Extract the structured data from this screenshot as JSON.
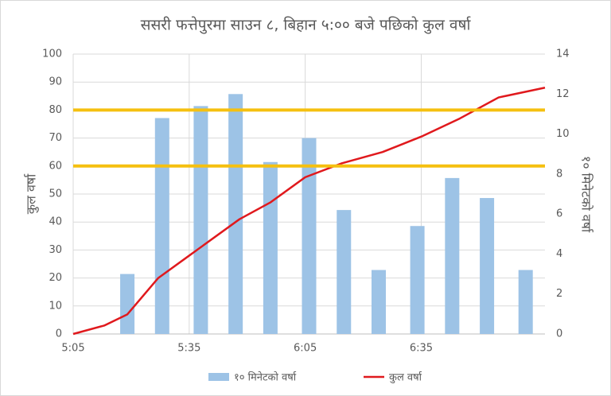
{
  "chart_data": {
    "type": "bar-line",
    "title": "ससरी फत्तेपुरमा साउन ८, बिहान ५:०० बजे पछिको कुल वर्षा",
    "ylabel": "कुल वर्षा",
    "y2label": "१० मिनेटको वर्षा",
    "xlim": [
      0,
      122
    ],
    "xticks": [
      {
        "value": 0,
        "label": "5:05"
      },
      {
        "value": 30,
        "label": "5:35"
      },
      {
        "value": 60,
        "label": "6:05"
      },
      {
        "value": 90,
        "label": "6:35"
      }
    ],
    "ylim": [
      0,
      100
    ],
    "yticks": [
      0,
      10,
      20,
      30,
      40,
      50,
      60,
      70,
      80,
      90,
      100
    ],
    "y2lim": [
      0,
      14
    ],
    "y2ticks": [
      0,
      2,
      4,
      6,
      8,
      10,
      12,
      14
    ],
    "grid": true,
    "legend": "bottom",
    "hlines": {
      "color": "#f5c010",
      "values": [
        60,
        80
      ]
    },
    "series": [
      {
        "name": "१० मिनेटको वर्षा",
        "type": "bar",
        "axis": "y2",
        "color": "#9dc3e6",
        "x": [
          14,
          23,
          33,
          42,
          51,
          61,
          70,
          79,
          89,
          98,
          107,
          117
        ],
        "values": [
          3.0,
          10.8,
          11.4,
          12.0,
          8.6,
          9.8,
          6.2,
          3.2,
          5.4,
          7.8,
          6.8,
          3.2
        ]
      },
      {
        "name": "कुल वर्षा",
        "type": "line",
        "axis": "y",
        "color": "#e0191d",
        "x": [
          0,
          8,
          14,
          22,
          30,
          43,
          51,
          60,
          69.5,
          80,
          90,
          100,
          110,
          122
        ],
        "values": [
          0,
          3,
          7,
          20,
          28,
          41,
          47,
          56,
          61,
          65,
          70.5,
          77,
          84.5,
          88
        ]
      }
    ]
  }
}
